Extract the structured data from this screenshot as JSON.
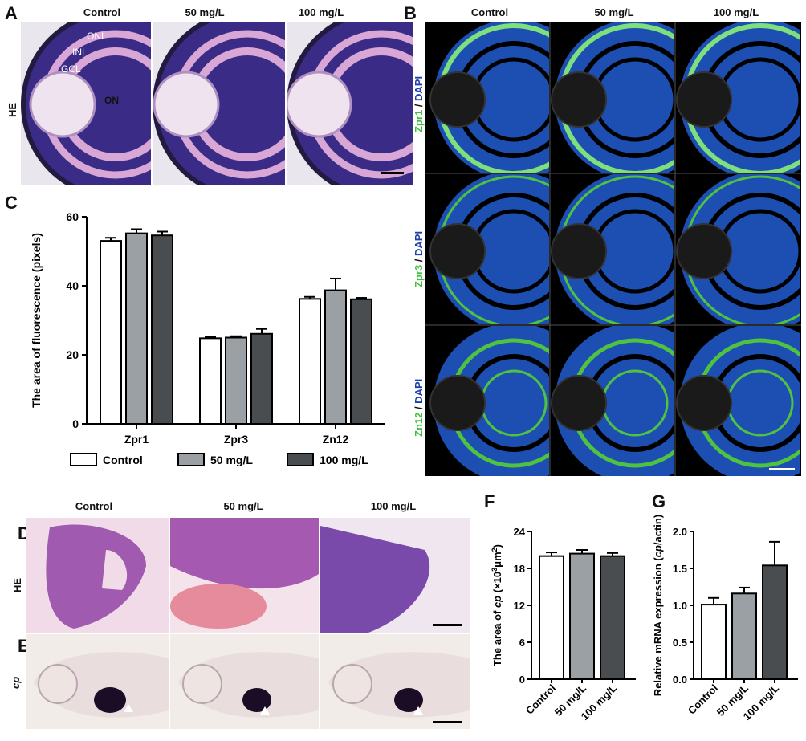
{
  "panel_letters": {
    "A": "A",
    "B": "B",
    "C": "C",
    "D": "D",
    "E": "E",
    "F": "F",
    "G": "G"
  },
  "conditions": [
    "Control",
    "50 mg/L",
    "100 mg/L"
  ],
  "panelA": {
    "row_label": "HE",
    "annotations": {
      "onl": "ONL",
      "inl": "INL",
      "gcl": "GCL",
      "on": "ON"
    }
  },
  "panelB": {
    "rows": [
      {
        "marker": "Zpr1",
        "sep": " / ",
        "counter": "DAPI"
      },
      {
        "marker": "Zpr3",
        "sep": " / ",
        "counter": "DAPI"
      },
      {
        "marker": "Zn12",
        "sep": " / ",
        "counter": "DAPI"
      }
    ]
  },
  "panelD": {
    "row_label": "HE"
  },
  "panelE": {
    "row_label": "cp"
  },
  "colors": {
    "control": "#ffffff",
    "mg50": "#9aa0a4",
    "mg100": "#4a4d50",
    "zpr_green": "#3fbf3f",
    "dapi_blue": "#1f3fa8"
  },
  "chart_data": [
    {
      "type": "bar",
      "panel": "C",
      "categories": [
        "Zpr1",
        "Zpr3",
        "Zn12"
      ],
      "series": [
        {
          "name": "Control",
          "values": [
            53,
            24.8,
            36.2
          ],
          "errors": [
            0.9,
            0.4,
            0.6
          ]
        },
        {
          "name": "50 mg/L",
          "values": [
            55.2,
            25.0,
            38.7
          ],
          "errors": [
            1.2,
            0.4,
            3.4
          ]
        },
        {
          "name": "100 mg/L",
          "values": [
            54.6,
            26.1,
            36.1
          ],
          "errors": [
            1.1,
            1.4,
            0.4
          ]
        }
      ],
      "ylabel": "The area of fluorescence (pixels)",
      "ylim": [
        0,
        60
      ],
      "yticks": [
        "0",
        "20",
        "40",
        "60"
      ],
      "legend_position": "bottom"
    },
    {
      "type": "bar",
      "panel": "F",
      "categories": [
        "Control",
        "50 mg/L",
        "100 mg/L"
      ],
      "values": [
        20.0,
        20.4,
        20.0
      ],
      "errors": [
        0.6,
        0.6,
        0.5
      ],
      "ylabel_prefix": "The area of ",
      "ylabel_italic": "cp",
      "ylabel_suffix": " (×10",
      "ylabel_sup1": "3",
      "ylabel_unit": "μm",
      "ylabel_sup2": "2",
      "ylabel_close": ")",
      "ylim": [
        0,
        24
      ],
      "yticks": [
        "0",
        "6",
        "12",
        "18",
        "24"
      ]
    },
    {
      "type": "bar",
      "panel": "G",
      "categories": [
        "Control",
        "50 mg/L",
        "100 mg/L"
      ],
      "values": [
        1.01,
        1.16,
        1.54
      ],
      "errors": [
        0.09,
        0.08,
        0.32
      ],
      "ylabel_prefix": "Relative mRNA expression (",
      "ylabel_italic": "cp",
      "ylabel_suffix": "/actin)",
      "ylim": [
        0,
        2.0
      ],
      "yticks": [
        "0.0",
        "0.5",
        "1.0",
        "1.5",
        "2.0"
      ]
    }
  ]
}
